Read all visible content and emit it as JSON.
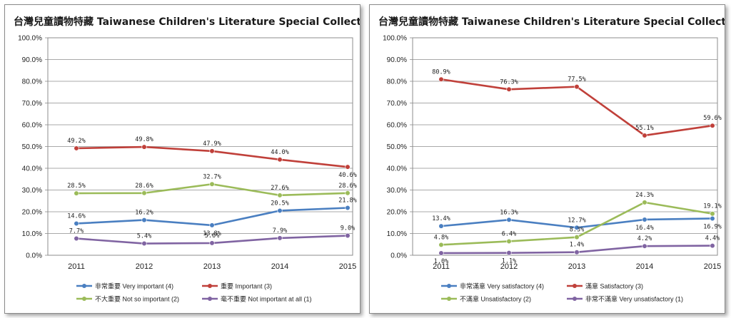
{
  "chart_data": [
    {
      "type": "line",
      "title": "台灣兒童讀物特藏  Taiwanese Children's Literature Special Collection",
      "categories": [
        "2011",
        "2012",
        "2013",
        "2014",
        "2015"
      ],
      "ylim": [
        0,
        100
      ],
      "yticks": [
        "0.0%",
        "10.0%",
        "20.0%",
        "30.0%",
        "40.0%",
        "50.0%",
        "60.0%",
        "70.0%",
        "80.0%",
        "90.0%",
        "100.0%"
      ],
      "grid": true,
      "legend": "bottom",
      "series": [
        {
          "name": "非常重要 Very important (4)",
          "color": "#4a7fc1",
          "values": [
            14.6,
            16.2,
            13.8,
            20.5,
            21.8
          ],
          "labels": [
            "14.6%",
            "16.2%",
            "13.8%",
            "20.5%",
            "21.8%"
          ]
        },
        {
          "name": "重要 Important (3)",
          "color": "#c0403a",
          "values": [
            49.2,
            49.8,
            47.9,
            44.0,
            40.6
          ],
          "labels": [
            "49.2%",
            "49.8%",
            "47.9%",
            "44.0%",
            "40.6%"
          ]
        },
        {
          "name": "不大重要 Not so important (2)",
          "color": "#9bbb59",
          "values": [
            28.5,
            28.6,
            32.7,
            27.6,
            28.6
          ],
          "labels": [
            "28.5%",
            "28.6%",
            "32.7%",
            "27.6%",
            "28.6%"
          ]
        },
        {
          "name": "毫不重要 Not important at all (1)",
          "color": "#8064a2",
          "values": [
            7.7,
            5.4,
            5.6,
            7.9,
            9.0
          ],
          "labels": [
            "7.7%",
            "5.4%",
            "5.6%",
            "7.9%",
            "9.0%"
          ]
        }
      ]
    },
    {
      "type": "line",
      "title": "台灣兒童讀物特藏  Taiwanese Children's Literature Special Collection",
      "categories": [
        "2011",
        "2012",
        "2013",
        "2014",
        "2015"
      ],
      "ylim": [
        0,
        100
      ],
      "yticks": [
        "0.0%",
        "10.0%",
        "20.0%",
        "30.0%",
        "40.0%",
        "50.0%",
        "60.0%",
        "70.0%",
        "80.0%",
        "90.0%",
        "100.0%"
      ],
      "grid": true,
      "legend": "bottom",
      "series": [
        {
          "name": "非常滿意 Very satisfactory (4)",
          "color": "#4a7fc1",
          "values": [
            13.4,
            16.3,
            12.7,
            16.4,
            16.9
          ],
          "labels": [
            "13.4%",
            "16.3%",
            "12.7%",
            "16.4%",
            "16.9%"
          ]
        },
        {
          "name": "滿意 Satisfactory (3)",
          "color": "#c0403a",
          "values": [
            80.9,
            76.3,
            77.5,
            55.1,
            59.6
          ],
          "labels": [
            "80.9%",
            "76.3%",
            "77.5%",
            "55.1%",
            "59.6%"
          ]
        },
        {
          "name": "不滿意 Unsatisfactory (2)",
          "color": "#9bbb59",
          "values": [
            4.8,
            6.4,
            8.3,
            24.3,
            19.1
          ],
          "labels": [
            "4.8%",
            "6.4%",
            "8.3%",
            "24.3%",
            "19.1%"
          ]
        },
        {
          "name": "非常不滿意 Very unsatisfactory (1)",
          "color": "#8064a2",
          "values": [
            1.0,
            1.1,
            1.4,
            4.2,
            4.4
          ],
          "labels": [
            "1.0%",
            "1.1%",
            "1.4%",
            "4.2%",
            "4.4%"
          ]
        }
      ]
    }
  ]
}
